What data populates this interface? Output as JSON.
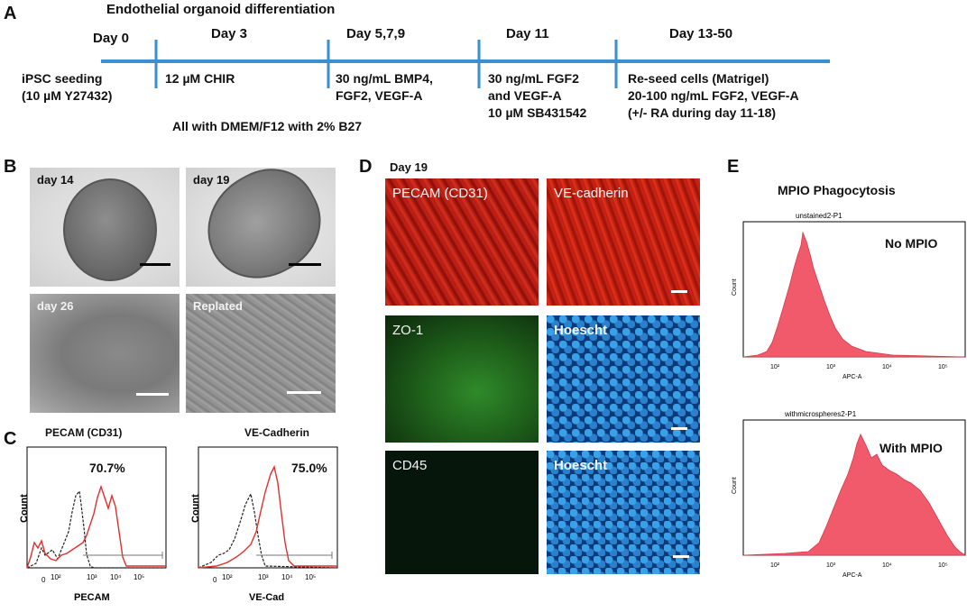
{
  "panel_a": {
    "letter": "A",
    "title": "Endothelial organoid differentiation",
    "days": [
      "Day 0",
      "Day 3",
      "Day 5,7,9",
      "Day 11",
      "Day 13-50"
    ],
    "steps": [
      [
        "iPSC seeding",
        "(10 µM Y27432)"
      ],
      [
        "12 µM CHIR"
      ],
      [
        "30 ng/mL BMP4,",
        "FGF2, VEGF-A"
      ],
      [
        "30 ng/mL FGF2",
        "and VEGF-A",
        "10 µM SB431542"
      ],
      [
        "Re-seed cells (Matrigel)",
        "20-100 ng/mL FGF2, VEGF-A",
        "(+/- RA during day 11-18)"
      ]
    ],
    "footer": "All with DMEM/F12 with 2% B27",
    "timeline_color": "#3b8fd0"
  },
  "panel_b": {
    "letter": "B",
    "images": [
      "day 14",
      "day 19",
      "day 26",
      "Replated"
    ]
  },
  "panel_c": {
    "letter": "C",
    "plots": [
      {
        "title": "PECAM (CD31)",
        "percent": "70.7%",
        "xlabel": "PECAM",
        "ylabel": "Count",
        "ticks": [
          "0",
          "10²",
          "10³",
          "10⁴",
          "10⁵"
        ]
      },
      {
        "title": "VE-Cadherin",
        "percent": "75.0%",
        "xlabel": "VE-Cad",
        "ylabel": "Count",
        "ticks": [
          "0",
          "10²",
          "10³",
          "10⁴",
          "10⁵"
        ]
      }
    ],
    "colors": {
      "control": "#222222",
      "stained": "#e0302e"
    }
  },
  "panel_d": {
    "letter": "D",
    "subtitle": "Day 19",
    "images": [
      "PECAM (CD31)",
      "VE-cadherin",
      "ZO-1",
      "Hoescht",
      "CD45",
      "Hoescht"
    ]
  },
  "panel_e": {
    "letter": "E",
    "title": "MPIO Phagocytosis",
    "plots": [
      {
        "header": "unstained2-P1",
        "label": "No MPIO",
        "xlabel": "APC-A",
        "ylabel": "Count",
        "yticks": [
          "0",
          "10",
          "20",
          "30",
          "40",
          "50",
          "60",
          "70",
          "80",
          "90"
        ],
        "xticks": [
          "10²",
          "10³",
          "10⁴",
          "10⁵"
        ]
      },
      {
        "header": "withmicrospheres2-P1",
        "label": "With MPIO",
        "xlabel": "APC-A",
        "ylabel": "Count",
        "yticks": [
          "0",
          "10",
          "20",
          "30",
          "40",
          "50"
        ],
        "xticks": [
          "10²",
          "10³",
          "10⁴",
          "10⁵"
        ]
      }
    ],
    "fill_color": "#f05a6a"
  }
}
